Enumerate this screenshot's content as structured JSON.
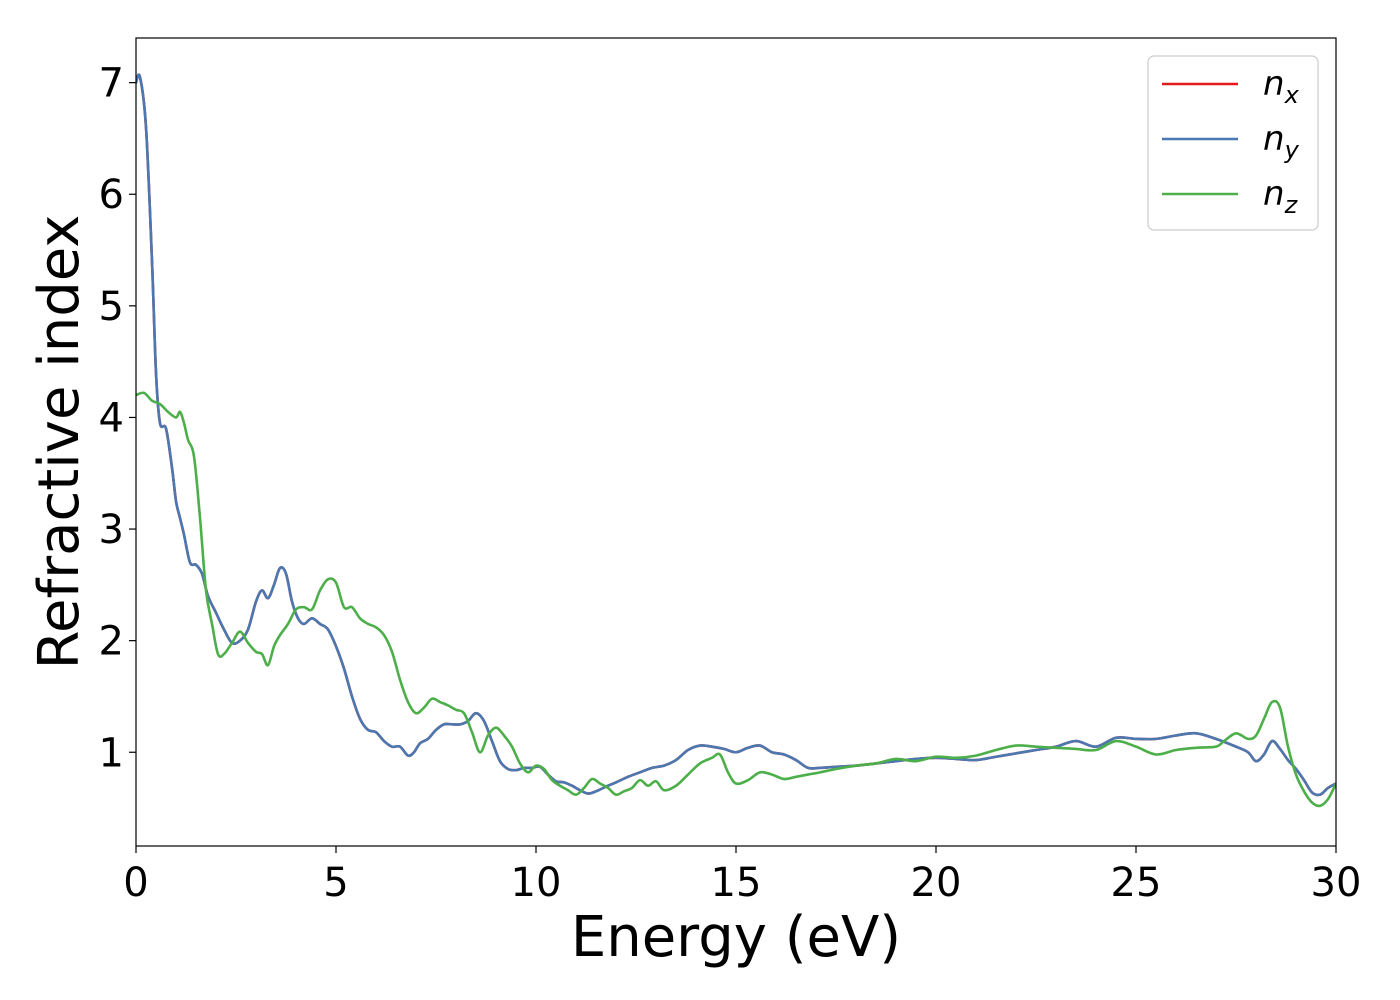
{
  "chart_data": {
    "type": "line",
    "xlabel": "Energy (eV)",
    "ylabel": "Refractive index",
    "xlim": [
      0,
      30
    ],
    "ylim": [
      0.16,
      7.4
    ],
    "xticks": [
      "0",
      "5",
      "10",
      "15",
      "20",
      "25",
      "30"
    ],
    "yticks": [
      "1",
      "2",
      "3",
      "4",
      "5",
      "6",
      "7"
    ],
    "grid": false,
    "legend_position": "top-right",
    "series": [
      {
        "name": "n_x",
        "legend_main": "n",
        "legend_sub": "x",
        "color": "#e41a1c",
        "x": [
          0,
          0.1,
          0.25,
          0.4,
          0.5,
          0.6,
          0.75,
          0.9,
          1.0,
          1.1,
          1.2,
          1.35,
          1.5,
          1.65,
          1.8,
          2.0,
          2.2,
          2.4,
          2.6,
          2.8,
          3.0,
          3.15,
          3.3,
          3.45,
          3.6,
          3.75,
          3.9,
          4.05,
          4.2,
          4.4,
          4.6,
          4.8,
          5.0,
          5.2,
          5.4,
          5.6,
          5.8,
          6.0,
          6.2,
          6.4,
          6.6,
          6.8,
          6.95,
          7.1,
          7.3,
          7.5,
          7.7,
          7.9,
          8.1,
          8.3,
          8.5,
          8.7,
          8.9,
          9.1,
          9.3,
          9.5,
          9.7,
          9.9,
          10.1,
          10.3,
          10.5,
          10.7,
          10.9,
          11.1,
          11.3,
          11.5,
          11.8,
          12.0,
          12.3,
          12.6,
          12.9,
          13.2,
          13.5,
          13.8,
          14.1,
          14.4,
          14.7,
          15.0,
          15.3,
          15.6,
          15.9,
          16.2,
          16.5,
          16.8,
          17.1,
          17.5,
          18.0,
          18.5,
          19.0,
          19.5,
          20.0,
          20.5,
          21.0,
          21.5,
          22.0,
          22.5,
          23.0,
          23.5,
          24.0,
          24.5,
          25.0,
          25.5,
          26.0,
          26.5,
          27.0,
          27.5,
          27.8,
          28.0,
          28.2,
          28.4,
          28.6,
          28.8,
          29.0,
          29.2,
          29.4,
          29.6,
          29.8,
          30.0
        ],
        "y": [
          7.0,
          7.05,
          6.6,
          5.4,
          4.4,
          3.95,
          3.9,
          3.55,
          3.25,
          3.1,
          2.95,
          2.7,
          2.68,
          2.6,
          2.4,
          2.25,
          2.1,
          1.98,
          2.0,
          2.1,
          2.35,
          2.45,
          2.38,
          2.5,
          2.65,
          2.6,
          2.35,
          2.2,
          2.15,
          2.2,
          2.15,
          2.1,
          1.95,
          1.75,
          1.5,
          1.3,
          1.2,
          1.18,
          1.1,
          1.05,
          1.05,
          0.97,
          1.0,
          1.08,
          1.12,
          1.2,
          1.25,
          1.25,
          1.25,
          1.28,
          1.35,
          1.28,
          1.1,
          0.92,
          0.85,
          0.84,
          0.86,
          0.86,
          0.87,
          0.8,
          0.74,
          0.73,
          0.7,
          0.66,
          0.63,
          0.65,
          0.7,
          0.73,
          0.78,
          0.82,
          0.86,
          0.88,
          0.93,
          1.02,
          1.06,
          1.05,
          1.03,
          1.0,
          1.04,
          1.06,
          1.0,
          0.98,
          0.93,
          0.86,
          0.86,
          0.87,
          0.88,
          0.9,
          0.92,
          0.94,
          0.95,
          0.94,
          0.93,
          0.96,
          0.99,
          1.02,
          1.05,
          1.1,
          1.05,
          1.13,
          1.12,
          1.12,
          1.15,
          1.17,
          1.12,
          1.05,
          1.0,
          0.92,
          0.98,
          1.1,
          1.03,
          0.93,
          0.85,
          0.75,
          0.64,
          0.62,
          0.68,
          0.72
        ]
      },
      {
        "name": "n_y",
        "legend_main": "n",
        "legend_sub": "y",
        "color": "#4a78b0",
        "x": [
          0,
          0.1,
          0.25,
          0.4,
          0.5,
          0.6,
          0.75,
          0.9,
          1.0,
          1.1,
          1.2,
          1.35,
          1.5,
          1.65,
          1.8,
          2.0,
          2.2,
          2.4,
          2.6,
          2.8,
          3.0,
          3.15,
          3.3,
          3.45,
          3.6,
          3.75,
          3.9,
          4.05,
          4.2,
          4.4,
          4.6,
          4.8,
          5.0,
          5.2,
          5.4,
          5.6,
          5.8,
          6.0,
          6.2,
          6.4,
          6.6,
          6.8,
          6.95,
          7.1,
          7.3,
          7.5,
          7.7,
          7.9,
          8.1,
          8.3,
          8.5,
          8.7,
          8.9,
          9.1,
          9.3,
          9.5,
          9.7,
          9.9,
          10.1,
          10.3,
          10.5,
          10.7,
          10.9,
          11.1,
          11.3,
          11.5,
          11.8,
          12.0,
          12.3,
          12.6,
          12.9,
          13.2,
          13.5,
          13.8,
          14.1,
          14.4,
          14.7,
          15.0,
          15.3,
          15.6,
          15.9,
          16.2,
          16.5,
          16.8,
          17.1,
          17.5,
          18.0,
          18.5,
          19.0,
          19.5,
          20.0,
          20.5,
          21.0,
          21.5,
          22.0,
          22.5,
          23.0,
          23.5,
          24.0,
          24.5,
          25.0,
          25.5,
          26.0,
          26.5,
          27.0,
          27.5,
          27.8,
          28.0,
          28.2,
          28.4,
          28.6,
          28.8,
          29.0,
          29.2,
          29.4,
          29.6,
          29.8,
          30.0
        ],
        "y": [
          7.0,
          7.05,
          6.6,
          5.4,
          4.4,
          3.95,
          3.9,
          3.55,
          3.25,
          3.1,
          2.95,
          2.7,
          2.68,
          2.6,
          2.4,
          2.25,
          2.1,
          1.98,
          2.0,
          2.1,
          2.35,
          2.45,
          2.38,
          2.5,
          2.65,
          2.6,
          2.35,
          2.2,
          2.15,
          2.2,
          2.15,
          2.1,
          1.95,
          1.75,
          1.5,
          1.3,
          1.2,
          1.18,
          1.1,
          1.05,
          1.05,
          0.97,
          1.0,
          1.08,
          1.12,
          1.2,
          1.25,
          1.25,
          1.25,
          1.28,
          1.35,
          1.28,
          1.1,
          0.92,
          0.85,
          0.84,
          0.86,
          0.86,
          0.87,
          0.8,
          0.74,
          0.73,
          0.7,
          0.66,
          0.63,
          0.65,
          0.7,
          0.73,
          0.78,
          0.82,
          0.86,
          0.88,
          0.93,
          1.02,
          1.06,
          1.05,
          1.03,
          1.0,
          1.04,
          1.06,
          1.0,
          0.98,
          0.93,
          0.86,
          0.86,
          0.87,
          0.88,
          0.9,
          0.92,
          0.94,
          0.95,
          0.94,
          0.93,
          0.96,
          0.99,
          1.02,
          1.05,
          1.1,
          1.05,
          1.13,
          1.12,
          1.12,
          1.15,
          1.17,
          1.12,
          1.05,
          1.0,
          0.92,
          0.98,
          1.1,
          1.03,
          0.93,
          0.85,
          0.75,
          0.64,
          0.62,
          0.68,
          0.72
        ]
      },
      {
        "name": "n_z",
        "legend_main": "n",
        "legend_sub": "z",
        "color": "#4daf4a",
        "x": [
          0,
          0.2,
          0.4,
          0.6,
          0.8,
          1.0,
          1.1,
          1.2,
          1.3,
          1.45,
          1.6,
          1.75,
          1.9,
          2.05,
          2.2,
          2.4,
          2.6,
          2.8,
          3.0,
          3.15,
          3.3,
          3.45,
          3.6,
          3.8,
          4.0,
          4.2,
          4.4,
          4.6,
          4.8,
          5.0,
          5.2,
          5.4,
          5.6,
          5.8,
          6.0,
          6.2,
          6.4,
          6.6,
          6.8,
          7.0,
          7.2,
          7.4,
          7.6,
          7.8,
          8.0,
          8.2,
          8.4,
          8.6,
          8.8,
          9.0,
          9.2,
          9.4,
          9.6,
          9.8,
          10.0,
          10.2,
          10.4,
          10.6,
          10.8,
          11.0,
          11.2,
          11.4,
          11.6,
          11.8,
          12.0,
          12.2,
          12.4,
          12.6,
          12.8,
          13.0,
          13.2,
          13.5,
          13.8,
          14.1,
          14.4,
          14.6,
          14.8,
          15.0,
          15.3,
          15.6,
          15.9,
          16.2,
          16.5,
          16.8,
          17.1,
          17.5,
          18.0,
          18.5,
          19.0,
          19.5,
          20.0,
          20.5,
          21.0,
          21.5,
          22.0,
          22.5,
          23.0,
          23.5,
          24.0,
          24.5,
          25.0,
          25.5,
          26.0,
          26.5,
          27.0,
          27.2,
          27.5,
          27.8,
          28.0,
          28.2,
          28.4,
          28.6,
          28.8,
          29.0,
          29.2,
          29.4,
          29.6,
          29.8,
          30.0
        ],
        "y": [
          4.2,
          4.22,
          4.15,
          4.12,
          4.05,
          4.0,
          4.05,
          3.95,
          3.8,
          3.65,
          3.1,
          2.45,
          2.15,
          1.88,
          1.88,
          1.98,
          2.08,
          1.98,
          1.9,
          1.88,
          1.78,
          1.95,
          2.05,
          2.15,
          2.28,
          2.3,
          2.28,
          2.45,
          2.55,
          2.52,
          2.3,
          2.3,
          2.2,
          2.15,
          2.12,
          2.05,
          1.9,
          1.65,
          1.45,
          1.35,
          1.4,
          1.48,
          1.45,
          1.42,
          1.38,
          1.35,
          1.18,
          1.0,
          1.15,
          1.22,
          1.15,
          1.05,
          0.9,
          0.82,
          0.88,
          0.85,
          0.75,
          0.7,
          0.66,
          0.62,
          0.68,
          0.76,
          0.72,
          0.68,
          0.62,
          0.65,
          0.68,
          0.75,
          0.7,
          0.74,
          0.66,
          0.7,
          0.8,
          0.9,
          0.95,
          0.98,
          0.82,
          0.72,
          0.75,
          0.82,
          0.8,
          0.76,
          0.78,
          0.8,
          0.82,
          0.85,
          0.88,
          0.9,
          0.94,
          0.92,
          0.96,
          0.95,
          0.97,
          1.02,
          1.06,
          1.05,
          1.04,
          1.03,
          1.02,
          1.1,
          1.05,
          0.98,
          1.02,
          1.04,
          1.05,
          1.1,
          1.17,
          1.12,
          1.15,
          1.3,
          1.45,
          1.4,
          1.05,
          0.8,
          0.65,
          0.55,
          0.52,
          0.58,
          0.72
        ]
      }
    ]
  }
}
